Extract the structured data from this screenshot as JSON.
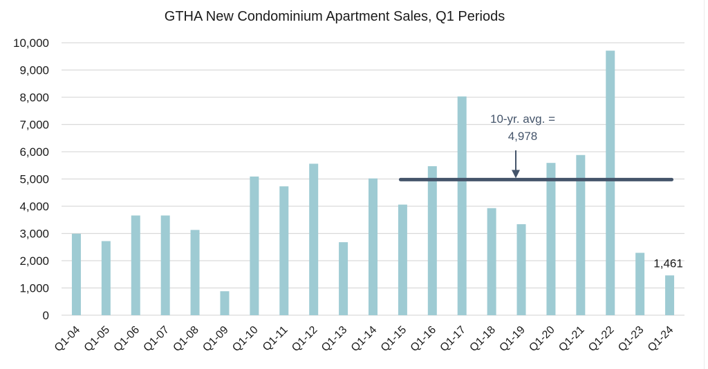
{
  "chart_data": {
    "type": "bar",
    "title": "GTHA New Condominium Apartment Sales, Q1 Periods",
    "xlabel": "",
    "ylabel": "",
    "ylim": [
      0,
      10000
    ],
    "yticks": [
      0,
      1000,
      2000,
      3000,
      4000,
      5000,
      6000,
      7000,
      8000,
      9000,
      10000
    ],
    "ytick_labels": [
      "0",
      "1,000",
      "2,000",
      "3,000",
      "4,000",
      "5,000",
      "6,000",
      "7,000",
      "8,000",
      "9,000",
      "10,000"
    ],
    "grid": true,
    "legend": "none",
    "categories": [
      "Q1-04",
      "Q1-05",
      "Q1-06",
      "Q1-07",
      "Q1-08",
      "Q1-09",
      "Q1-10",
      "Q1-11",
      "Q1-12",
      "Q1-13",
      "Q1-14",
      "Q1-15",
      "Q1-16",
      "Q1-17",
      "Q1-18",
      "Q1-19",
      "Q1-20",
      "Q1-21",
      "Q1-22",
      "Q1-23",
      "Q1-24"
    ],
    "values": [
      2990,
      2720,
      3660,
      3660,
      3130,
      880,
      5090,
      4730,
      5560,
      2680,
      5020,
      4060,
      5470,
      8030,
      3930,
      3340,
      5590,
      5880,
      9710,
      2290,
      1461
    ],
    "bar_color": "#9ecbd3",
    "reference_line": {
      "label_line1": "10-yr. avg. =",
      "label_line2": "4,978",
      "value": 4978,
      "from_category": "Q1-15",
      "to_category": "Q1-24",
      "color": "#44546a"
    },
    "data_labels": [
      {
        "category": "Q1-24",
        "text": "1,461"
      }
    ]
  }
}
